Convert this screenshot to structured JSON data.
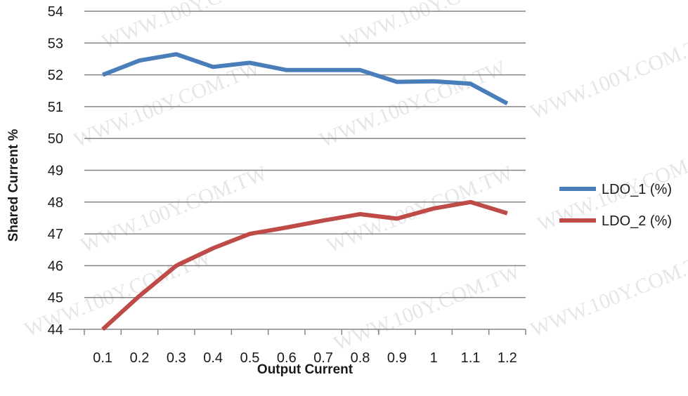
{
  "chart_data": {
    "type": "line",
    "xlabel": "Output Current",
    "ylabel": "Shared Current %",
    "x": [
      "0.1",
      "0.2",
      "0.3",
      "0.4",
      "0.5",
      "0.6",
      "0.7",
      "0.8",
      "0.9",
      "1",
      "1.1",
      "1.2"
    ],
    "ylim": [
      44,
      54
    ],
    "yticks": [
      "44",
      "45",
      "46",
      "47",
      "48",
      "49",
      "50",
      "51",
      "52",
      "53",
      "54"
    ],
    "grid": true,
    "legend_position": "right",
    "watermark_text": "WWW.100Y.COM.TW",
    "series": [
      {
        "name": "LDO_1 (%)",
        "color": "#4a7ebb",
        "values": [
          52.0,
          52.45,
          52.65,
          52.25,
          52.38,
          52.15,
          52.15,
          52.15,
          51.78,
          51.8,
          51.72,
          51.1
        ]
      },
      {
        "name": "LDO_2 (%)",
        "color": "#be4b48",
        "values": [
          44.0,
          45.05,
          46.0,
          46.55,
          47.0,
          47.2,
          47.42,
          47.62,
          47.48,
          47.8,
          48.0,
          47.65
        ]
      }
    ]
  }
}
